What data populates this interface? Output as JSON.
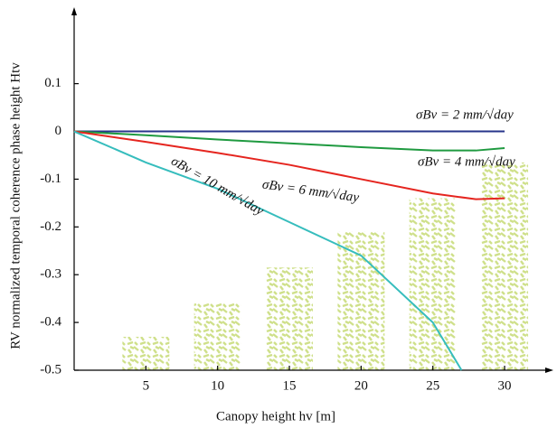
{
  "chart_data": {
    "type": "line",
    "x_label": "Canopy height hv [m]",
    "y_label": "RV normalized temporal coherence phase height Htv",
    "xlim": [
      0,
      33.4
    ],
    "ylim": [
      -0.5,
      0.26
    ],
    "xticks": [
      5,
      10,
      15,
      20,
      25,
      30
    ],
    "yticks": [
      0.1,
      0,
      -0.1,
      -0.2,
      -0.3,
      -0.4,
      -0.5
    ],
    "grid": false,
    "canopy_bars": {
      "color": "#cfe08a",
      "x": [
        5,
        10,
        15,
        20,
        25,
        30
      ],
      "values": [
        -0.43,
        -0.36,
        -0.285,
        -0.21,
        -0.14,
        -0.065
      ]
    },
    "series": [
      {
        "name": "σBv = 2 mm/√day",
        "color": "#27348b",
        "x": [
          0,
          5,
          10,
          15,
          20,
          25,
          30
        ],
        "values": [
          0,
          0,
          0,
          0,
          0,
          0,
          0
        ]
      },
      {
        "name": "σBv = 4 mm/√day",
        "color": "#1f9a40",
        "x": [
          0,
          5,
          10,
          15,
          20,
          25,
          28,
          30
        ],
        "values": [
          0,
          -0.008,
          -0.017,
          -0.025,
          -0.033,
          -0.04,
          -0.04,
          -0.035
        ]
      },
      {
        "name": "σBv = 6 mm/√day",
        "color": "#e5251f",
        "x": [
          0,
          5,
          10,
          15,
          20,
          25,
          28,
          30
        ],
        "values": [
          0,
          -0.022,
          -0.045,
          -0.07,
          -0.1,
          -0.13,
          -0.142,
          -0.14
        ]
      },
      {
        "name": "σBv = 10 mm/√day",
        "color": "#36bdbd",
        "x": [
          0,
          5,
          10,
          15,
          20,
          25,
          27
        ],
        "values": [
          0,
          -0.065,
          -0.12,
          -0.19,
          -0.26,
          -0.4,
          -0.5
        ]
      }
    ]
  }
}
